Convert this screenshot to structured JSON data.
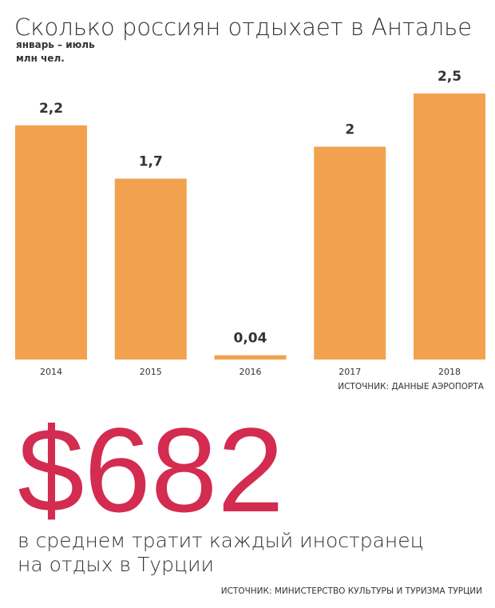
{
  "chart_data": {
    "type": "bar",
    "title": "Сколько россиян отдыхает в Анталье",
    "subtitle": "январь – июль",
    "unit": "млн чел.",
    "categories": [
      "2014",
      "2015",
      "2016",
      "2017",
      "2018"
    ],
    "values": [
      2.2,
      1.7,
      0.04,
      2,
      2.5
    ],
    "value_labels": [
      "2,2",
      "1,7",
      "0,04",
      "2",
      "2,5"
    ],
    "color": "#f2a24f",
    "source": "ИСТОЧНИК: ДАННЫЕ АЭРОПОРТА"
  },
  "highlight": {
    "figure": "$682",
    "lines": [
      "в среднем тратит каждый иностранец",
      "на отдых в Турции"
    ],
    "source": "ИСТОЧНИК: МИНИСТЕРСТВО КУЛЬТУРЫ И ТУРИЗМА ТУРЦИИ"
  }
}
